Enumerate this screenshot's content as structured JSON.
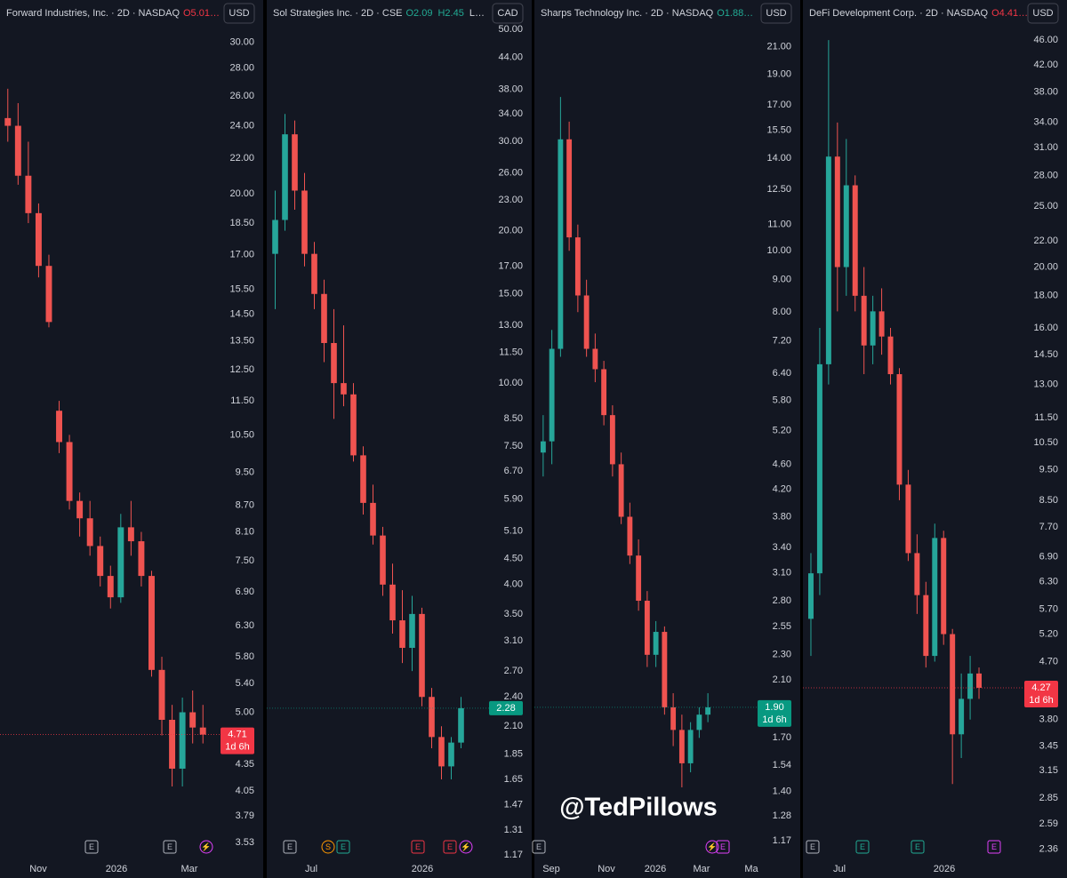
{
  "watermark": "@TedPillows",
  "chart_data": [
    {
      "type": "candlestick",
      "title": "Forward Industries, Inc. · 2D · NASDAQ",
      "ohlc_text": [
        {
          "text": "O5.01…",
          "color": "#f23645"
        }
      ],
      "currency": "USD",
      "log_scale": true,
      "ylim": [
        3.39,
        33.6
      ],
      "yticks": [
        {
          "value": 30,
          "label": "30.00"
        },
        {
          "value": 28,
          "label": "28.00"
        },
        {
          "value": 26,
          "label": "26.00"
        },
        {
          "value": 24,
          "label": "24.00"
        },
        {
          "value": 22,
          "label": "22.00"
        },
        {
          "value": 20,
          "label": "20.00"
        },
        {
          "value": 18.5,
          "label": "18.50"
        },
        {
          "value": 17,
          "label": "17.00"
        },
        {
          "value": 15.5,
          "label": "15.50"
        },
        {
          "value": 14.5,
          "label": "14.50"
        },
        {
          "value": 13.5,
          "label": "13.50"
        },
        {
          "value": 12.5,
          "label": "12.50"
        },
        {
          "value": 11.5,
          "label": "11.50"
        },
        {
          "value": 10.5,
          "label": "10.50"
        },
        {
          "value": 9.5,
          "label": "9.50"
        },
        {
          "value": 8.7,
          "label": "8.70"
        },
        {
          "value": 8.1,
          "label": "8.10"
        },
        {
          "value": 7.5,
          "label": "7.50"
        },
        {
          "value": 6.9,
          "label": "6.90"
        },
        {
          "value": 6.3,
          "label": "6.30"
        },
        {
          "value": 5.8,
          "label": "5.80"
        },
        {
          "value": 5.4,
          "label": "5.40"
        },
        {
          "value": 5,
          "label": "5.00"
        },
        {
          "value": 4.35,
          "label": "4.35"
        },
        {
          "value": 4.05,
          "label": "4.05"
        },
        {
          "value": 3.79,
          "label": "3.79"
        },
        {
          "value": 3.53,
          "label": "3.53"
        }
      ],
      "up_color": "#26a69a",
      "down_color": "#ef5350",
      "candles": {
        "open": [
          24.5,
          24,
          21,
          19,
          16.5,
          11.2,
          10.3,
          8.8,
          8.4,
          7.8,
          7.2,
          6.8,
          8.2,
          7.9,
          7.2,
          5.6,
          4.9,
          4.3,
          5.0,
          4.8
        ],
        "high": [
          26.5,
          25.5,
          23,
          19.5,
          17,
          11.5,
          10.5,
          9,
          8.8,
          8,
          7.4,
          8.5,
          8.8,
          8.1,
          7.3,
          5.8,
          5.1,
          5.2,
          5.3,
          5.1
        ],
        "low": [
          23,
          20.5,
          18.5,
          16,
          14,
          10,
          8.6,
          8,
          7.6,
          7,
          6.6,
          6.7,
          7.6,
          7,
          5.5,
          4.7,
          4.1,
          4.1,
          4.6,
          4.6
        ],
        "close": [
          24,
          21,
          19,
          16.5,
          14.2,
          10.3,
          8.8,
          8.4,
          7.8,
          7.2,
          6.8,
          8.2,
          7.9,
          7.2,
          5.6,
          4.9,
          4.3,
          5.0,
          4.8,
          4.71
        ]
      },
      "last_price": {
        "value": 4.71,
        "label": "4.71"
      },
      "last_color": "#f23645",
      "countdown": "1d 6h",
      "x_labels": [
        "Nov",
        "2026",
        "Mar"
      ],
      "events": [
        {
          "label": "E",
          "color": "#b2b5be"
        },
        {
          "label": "E",
          "color": "#b2b5be"
        },
        {
          "label": "⚡",
          "color": "#e040fb"
        }
      ]
    },
    {
      "type": "candlestick",
      "title": "Sol Strategies Inc. · 2D · CSE",
      "ohlc_text": [
        {
          "text": "O2.09",
          "color": "#22ab94"
        },
        {
          "text": "H2.45",
          "color": "#22ab94"
        },
        {
          "text": "L…",
          "color": "#d1d4dc"
        }
      ],
      "currency": "CAD",
      "log_scale": true,
      "ylim": [
        1.156,
        57.1
      ],
      "yticks": [
        {
          "value": 50,
          "label": "50.00"
        },
        {
          "value": 44,
          "label": "44.00"
        },
        {
          "value": 38,
          "label": "38.00"
        },
        {
          "value": 34,
          "label": "34.00"
        },
        {
          "value": 30,
          "label": "30.00"
        },
        {
          "value": 26,
          "label": "26.00"
        },
        {
          "value": 23,
          "label": "23.00"
        },
        {
          "value": 20,
          "label": "20.00"
        },
        {
          "value": 17,
          "label": "17.00"
        },
        {
          "value": 15,
          "label": "15.00"
        },
        {
          "value": 13,
          "label": "13.00"
        },
        {
          "value": 11.5,
          "label": "11.50"
        },
        {
          "value": 10,
          "label": "10.00"
        },
        {
          "value": 8.5,
          "label": "8.50"
        },
        {
          "value": 7.5,
          "label": "7.50"
        },
        {
          "value": 6.7,
          "label": "6.70"
        },
        {
          "value": 5.9,
          "label": "5.90"
        },
        {
          "value": 5.1,
          "label": "5.10"
        },
        {
          "value": 4.5,
          "label": "4.50"
        },
        {
          "value": 4,
          "label": "4.00"
        },
        {
          "value": 3.5,
          "label": "3.50"
        },
        {
          "value": 3.1,
          "label": "3.10"
        },
        {
          "value": 2.7,
          "label": "2.70"
        },
        {
          "value": 2.4,
          "label": "2.40"
        },
        {
          "value": 2.1,
          "label": "2.10"
        },
        {
          "value": 1.85,
          "label": "1.85"
        },
        {
          "value": 1.65,
          "label": "1.65"
        },
        {
          "value": 1.47,
          "label": "1.47"
        },
        {
          "value": 1.31,
          "label": "1.31"
        },
        {
          "value": 1.17,
          "label": "1.17"
        }
      ],
      "up_color": "#26a69a",
      "down_color": "#ef5350",
      "candles": {
        "open": [
          18,
          21,
          31,
          24,
          18,
          15,
          12,
          10,
          9.5,
          7.2,
          5.8,
          5.0,
          4.0,
          3.4,
          3.0,
          3.5,
          2.4,
          2.0,
          1.75,
          1.95
        ],
        "high": [
          24,
          34,
          33,
          26,
          19,
          16,
          14,
          13,
          10,
          7.5,
          6.3,
          5.2,
          4.4,
          3.9,
          3.8,
          3.6,
          2.5,
          2.1,
          2.0,
          2.4
        ],
        "low": [
          14,
          20,
          22,
          17,
          14,
          11,
          8.5,
          9,
          7,
          5.5,
          4.8,
          3.8,
          3.2,
          2.8,
          2.7,
          2.3,
          1.9,
          1.65,
          1.65,
          1.9
        ],
        "close": [
          21,
          31,
          24,
          18,
          15,
          12,
          10,
          9.5,
          7.2,
          5.8,
          5.0,
          4.0,
          3.4,
          3.0,
          3.5,
          2.4,
          2.0,
          1.75,
          1.95,
          2.28
        ]
      },
      "last_price": {
        "value": 2.28,
        "label": "2.28"
      },
      "last_color": "#089981",
      "x_labels": [
        "Jul",
        "2026"
      ],
      "events": [
        {
          "label": "E",
          "color": "#b2b5be"
        },
        {
          "label": "S",
          "color": "#ff9800"
        },
        {
          "label": "E",
          "color": "#22ab94"
        },
        {
          "label": "E",
          "color": "#f23645"
        },
        {
          "label": "E",
          "color": "#f23645"
        },
        {
          "label": "⚡",
          "color": "#e040fb"
        }
      ]
    },
    {
      "type": "candlestick",
      "title": "Sharps Technology Inc. · 2D · NASDAQ",
      "ohlc_text": [
        {
          "text": "O1.88…",
          "color": "#22ab94"
        }
      ],
      "currency": "USD",
      "log_scale": true,
      "ylim": [
        1.1,
        24.9
      ],
      "yticks": [
        {
          "value": 21,
          "label": "21.00"
        },
        {
          "value": 19,
          "label": "19.00"
        },
        {
          "value": 17,
          "label": "17.00"
        },
        {
          "value": 15.5,
          "label": "15.50"
        },
        {
          "value": 14,
          "label": "14.00"
        },
        {
          "value": 12.5,
          "label": "12.50"
        },
        {
          "value": 11,
          "label": "11.00"
        },
        {
          "value": 10,
          "label": "10.00"
        },
        {
          "value": 9,
          "label": "9.00"
        },
        {
          "value": 8,
          "label": "8.00"
        },
        {
          "value": 7.2,
          "label": "7.20"
        },
        {
          "value": 6.4,
          "label": "6.40"
        },
        {
          "value": 5.8,
          "label": "5.80"
        },
        {
          "value": 5.2,
          "label": "5.20"
        },
        {
          "value": 4.6,
          "label": "4.60"
        },
        {
          "value": 4.2,
          "label": "4.20"
        },
        {
          "value": 3.8,
          "label": "3.80"
        },
        {
          "value": 3.4,
          "label": "3.40"
        },
        {
          "value": 3.1,
          "label": "3.10"
        },
        {
          "value": 2.8,
          "label": "2.80"
        },
        {
          "value": 2.55,
          "label": "2.55"
        },
        {
          "value": 2.3,
          "label": "2.30"
        },
        {
          "value": 2.1,
          "label": "2.10"
        },
        {
          "value": 1.7,
          "label": "1.70"
        },
        {
          "value": 1.54,
          "label": "1.54"
        },
        {
          "value": 1.4,
          "label": "1.40"
        },
        {
          "value": 1.28,
          "label": "1.28"
        },
        {
          "value": 1.17,
          "label": "1.17"
        }
      ],
      "up_color": "#26a69a",
      "down_color": "#ef5350",
      "candles": {
        "open": [
          4.8,
          5.0,
          7.0,
          15,
          10.5,
          8.5,
          7.0,
          6.5,
          5.5,
          4.6,
          3.8,
          3.3,
          2.8,
          2.3,
          2.5,
          1.9,
          1.75,
          1.55,
          1.75,
          1.85
        ],
        "high": [
          5.5,
          7.5,
          17.5,
          16,
          11,
          9,
          7.4,
          6.7,
          5.7,
          4.8,
          4.0,
          3.5,
          2.9,
          2.6,
          2.55,
          2.0,
          1.85,
          1.8,
          1.9,
          2.0
        ],
        "low": [
          4.4,
          4.6,
          6.8,
          10,
          8,
          6.8,
          6.2,
          5.3,
          4.4,
          3.7,
          3.2,
          2.7,
          2.2,
          2.2,
          1.85,
          1.65,
          1.42,
          1.5,
          1.7,
          1.8
        ],
        "close": [
          5.0,
          7.0,
          15,
          10.5,
          8.5,
          7.0,
          6.5,
          5.5,
          4.6,
          3.8,
          3.3,
          2.8,
          2.3,
          2.5,
          1.9,
          1.75,
          1.55,
          1.75,
          1.85,
          1.9
        ]
      },
      "last_price": {
        "value": 1.9,
        "label": "1.90"
      },
      "last_color": "#089981",
      "countdown": "1d 6h",
      "x_labels": [
        "Sep",
        "Nov",
        "2026",
        "Mar",
        "Ma"
      ],
      "events": [
        {
          "label": "E",
          "color": "#b2b5be"
        },
        {
          "label": "⚡",
          "color": "#e040fb"
        },
        {
          "label": "E",
          "color": "#e040fb"
        }
      ]
    },
    {
      "type": "candlestick",
      "title": "DeFi Development Corp. · 2D · NASDAQ",
      "ohlc_text": [
        {
          "text": "O4.41…",
          "color": "#f23645"
        }
      ],
      "currency": "USD",
      "log_scale": true,
      "ylim": [
        2.29,
        53.3
      ],
      "yticks": [
        {
          "value": 46,
          "label": "46.00"
        },
        {
          "value": 42,
          "label": "42.00"
        },
        {
          "value": 38,
          "label": "38.00"
        },
        {
          "value": 34,
          "label": "34.00"
        },
        {
          "value": 31,
          "label": "31.00"
        },
        {
          "value": 28,
          "label": "28.00"
        },
        {
          "value": 25,
          "label": "25.00"
        },
        {
          "value": 22,
          "label": "22.00"
        },
        {
          "value": 20,
          "label": "20.00"
        },
        {
          "value": 18,
          "label": "18.00"
        },
        {
          "value": 16,
          "label": "16.00"
        },
        {
          "value": 14.5,
          "label": "14.50"
        },
        {
          "value": 13,
          "label": "13.00"
        },
        {
          "value": 11.5,
          "label": "11.50"
        },
        {
          "value": 10.5,
          "label": "10.50"
        },
        {
          "value": 9.5,
          "label": "9.50"
        },
        {
          "value": 8.5,
          "label": "8.50"
        },
        {
          "value": 7.7,
          "label": "7.70"
        },
        {
          "value": 6.9,
          "label": "6.90"
        },
        {
          "value": 6.3,
          "label": "6.30"
        },
        {
          "value": 5.7,
          "label": "5.70"
        },
        {
          "value": 5.2,
          "label": "5.20"
        },
        {
          "value": 4.7,
          "label": "4.70"
        },
        {
          "value": 3.8,
          "label": "3.80"
        },
        {
          "value": 3.45,
          "label": "3.45"
        },
        {
          "value": 3.15,
          "label": "3.15"
        },
        {
          "value": 2.85,
          "label": "2.85"
        },
        {
          "value": 2.59,
          "label": "2.59"
        },
        {
          "value": 2.36,
          "label": "2.36"
        }
      ],
      "up_color": "#26a69a",
      "down_color": "#ef5350",
      "candles": {
        "open": [
          5.5,
          6.5,
          14,
          30,
          20,
          27,
          18,
          15,
          17,
          15.5,
          13.5,
          9.0,
          7.0,
          6.0,
          4.8,
          7.4,
          5.2,
          3.6,
          4.1,
          4.5
        ],
        "high": [
          7,
          16,
          46,
          34,
          32,
          28,
          20,
          18,
          18.5,
          16,
          13.8,
          9.5,
          7.5,
          6.3,
          7.8,
          7.6,
          5.3,
          4.5,
          4.8,
          4.6
        ],
        "low": [
          4.8,
          6,
          13,
          17,
          18,
          17,
          13.5,
          14,
          14.5,
          13,
          8.5,
          6.8,
          5.6,
          4.6,
          4.7,
          5.0,
          3.0,
          3.3,
          3.8,
          4.1
        ],
        "close": [
          6.5,
          14,
          30,
          20,
          27,
          18,
          15,
          17,
          15.5,
          13.5,
          9.0,
          7.0,
          6.0,
          4.8,
          7.4,
          5.2,
          3.6,
          4.1,
          4.5,
          4.27
        ]
      },
      "last_price": {
        "value": 4.27,
        "label": "4.27"
      },
      "last_color": "#f23645",
      "countdown": "1d 6h",
      "x_labels": [
        "Jul",
        "2026"
      ],
      "events": [
        {
          "label": "E",
          "color": "#b2b5be"
        },
        {
          "label": "E",
          "color": "#22ab94"
        },
        {
          "label": "E",
          "color": "#22ab94"
        },
        {
          "label": "E",
          "color": "#e040fb"
        }
      ]
    }
  ]
}
